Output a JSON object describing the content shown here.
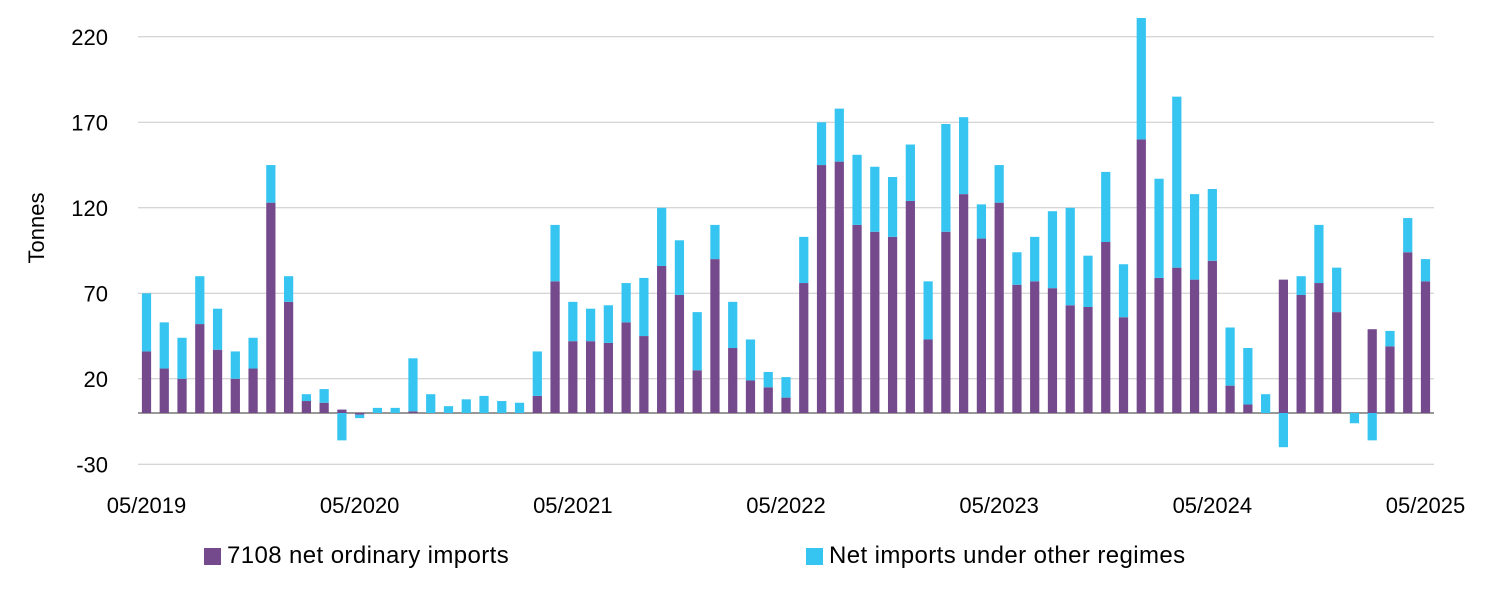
{
  "chart_data": {
    "type": "bar",
    "stacked": true,
    "xlabel": "",
    "ylabel": "Tonnes",
    "ylim": [
      -30,
      240
    ],
    "yticks": [
      -30,
      20,
      70,
      120,
      170,
      220
    ],
    "xtick_labels": [
      "05/2019",
      "05/2020",
      "05/2021",
      "05/2022",
      "05/2023",
      "05/2024",
      "05/2025"
    ],
    "grid": true,
    "legend_position": "bottom",
    "categories": [
      "05/2019",
      "06/2019",
      "07/2019",
      "08/2019",
      "09/2019",
      "10/2019",
      "11/2019",
      "12/2019",
      "01/2020",
      "02/2020",
      "03/2020",
      "04/2020",
      "05/2020",
      "06/2020",
      "07/2020",
      "08/2020",
      "09/2020",
      "10/2020",
      "11/2020",
      "12/2020",
      "01/2021",
      "02/2021",
      "03/2021",
      "04/2021",
      "05/2021",
      "06/2021",
      "07/2021",
      "08/2021",
      "09/2021",
      "10/2021",
      "11/2021",
      "12/2021",
      "01/2022",
      "02/2022",
      "03/2022",
      "04/2022",
      "05/2022",
      "06/2022",
      "07/2022",
      "08/2022",
      "09/2022",
      "10/2022",
      "11/2022",
      "12/2022",
      "01/2023",
      "02/2023",
      "03/2023",
      "04/2023",
      "05/2023",
      "06/2023",
      "07/2023",
      "08/2023",
      "09/2023",
      "10/2023",
      "11/2023",
      "12/2023",
      "01/2024",
      "02/2024",
      "03/2024",
      "04/2024",
      "05/2024",
      "06/2024",
      "07/2024",
      "08/2024",
      "09/2024",
      "10/2024",
      "11/2024",
      "12/2024",
      "01/2025",
      "02/2025",
      "03/2025",
      "04/2025",
      "05/2025"
    ],
    "series": [
      {
        "name": "7108 net ordinary imports",
        "color": "#754A8C",
        "values": [
          36,
          26,
          20,
          52,
          37,
          20,
          26,
          123,
          65,
          7,
          6,
          2,
          -1,
          0,
          0,
          1,
          0,
          0,
          0,
          0,
          0,
          0,
          10,
          77,
          42,
          42,
          41,
          53,
          45,
          86,
          69,
          25,
          90,
          38,
          19,
          15,
          9,
          76,
          145,
          147,
          110,
          106,
          103,
          124,
          43,
          106,
          128,
          102,
          123,
          75,
          77,
          73,
          63,
          62,
          100,
          56,
          160,
          79,
          85,
          78,
          89,
          16,
          5,
          0,
          78,
          69,
          76,
          59,
          0,
          49,
          39,
          94,
          77
        ]
      },
      {
        "name": "Net imports under other regimes",
        "color": "#36C5F0",
        "values": [
          34,
          27,
          24,
          28,
          24,
          16,
          18,
          22,
          15,
          4,
          8,
          -16,
          -2,
          3,
          3,
          31,
          11,
          4,
          8,
          10,
          7,
          6,
          26,
          33,
          23,
          19,
          22,
          23,
          34,
          34,
          32,
          34,
          20,
          27,
          24,
          9,
          12,
          27,
          25,
          31,
          41,
          38,
          35,
          33,
          34,
          63,
          45,
          20,
          22,
          19,
          26,
          45,
          57,
          30,
          41,
          31,
          71,
          58,
          100,
          50,
          42,
          34,
          33,
          11,
          -20,
          11,
          34,
          26,
          -6,
          -16,
          9,
          20,
          13
        ]
      }
    ]
  },
  "legend": [
    {
      "label": "7108 net ordinary imports",
      "color": "#754A8C"
    },
    {
      "label": "Net imports under other regimes",
      "color": "#36C5F0"
    }
  ]
}
